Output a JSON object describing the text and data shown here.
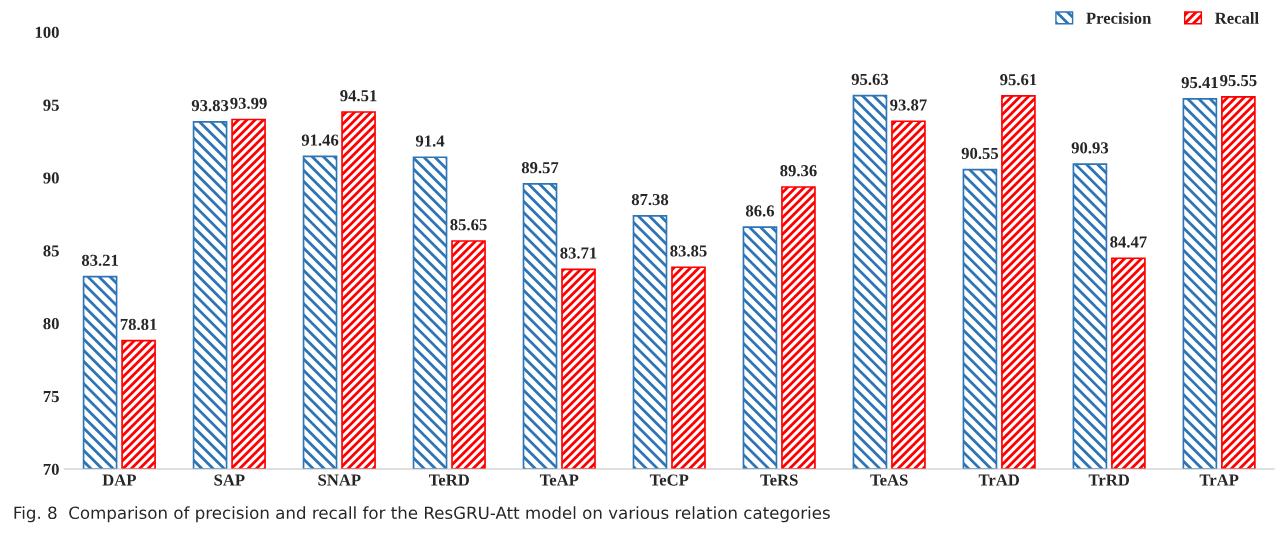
{
  "chart_data": {
    "type": "bar",
    "categories": [
      "DAP",
      "SAP",
      "SNAP",
      "TeRD",
      "TeAP",
      "TeCP",
      "TeRS",
      "TeAS",
      "TrAD",
      "TrRD",
      "TrAP"
    ],
    "series": [
      {
        "name": "Precision",
        "color": "#2e75b6",
        "values": [
          83.21,
          93.83,
          91.46,
          91.4,
          89.57,
          87.38,
          86.6,
          95.63,
          90.55,
          90.93,
          95.41
        ]
      },
      {
        "name": "Recall",
        "color": "#ff0000",
        "values": [
          78.81,
          93.99,
          94.51,
          85.65,
          83.71,
          83.85,
          89.36,
          93.87,
          95.61,
          84.47,
          95.55
        ]
      }
    ],
    "ylim": [
      70,
      100
    ],
    "yticks": [
      70,
      75,
      80,
      85,
      90,
      95,
      100
    ],
    "data_labels": true,
    "legend": "top right",
    "grid": false,
    "annotations": [
      "Fig. 8  Comparison of precision and recall for the ResGRU-Att model on various relation categories"
    ]
  }
}
